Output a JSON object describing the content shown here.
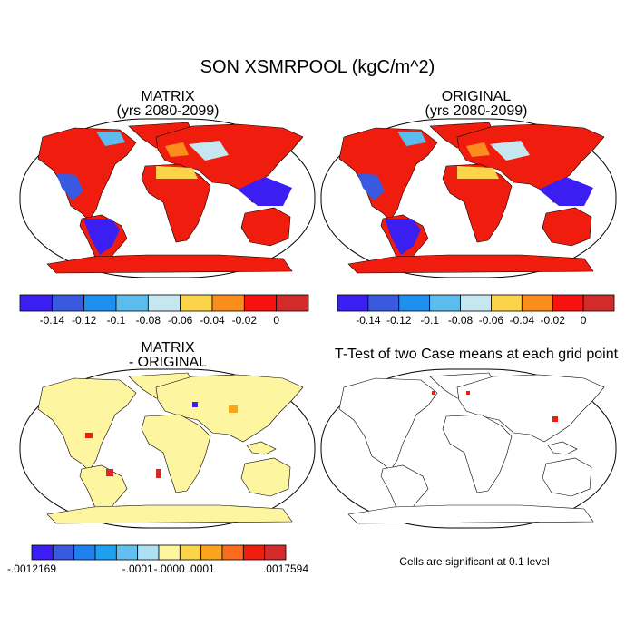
{
  "title": "SON XSMRPOOL (kgC/m^2)",
  "panels": [
    {
      "title": "MATRIX",
      "subtitle": "(yrs 2080-2099)"
    },
    {
      "title": "ORIGINAL",
      "subtitle": "(yrs 2080-2099)"
    },
    {
      "title": "MATRIX",
      "subtitle": "- ORIGINAL"
    },
    {
      "title": "T-Test of two Case means at each grid point",
      "note": "Cells are significant at 0.1 level"
    }
  ],
  "colorbars": [
    {
      "colors": [
        "#3a1ef2",
        "#3859e0",
        "#1e90f0",
        "#5bbcee",
        "#c6e6f0",
        "#fbd44a",
        "#fb8d1c",
        "#f7110f",
        "#d32b2b"
      ],
      "labels": [
        "-0.14",
        "-0.12",
        "-0.1",
        "-0.08",
        "-0.06",
        "-0.04",
        "-0.02",
        "0"
      ]
    },
    {
      "colors": [
        "#3a1ef2",
        "#3859e0",
        "#1e90f0",
        "#5bbcee",
        "#c6e6f0",
        "#fbd44a",
        "#fb8d1c",
        "#f7110f",
        "#d32b2b"
      ],
      "labels": [
        "-0.14",
        "-0.12",
        "-0.1",
        "-0.08",
        "-0.06",
        "-0.04",
        "-0.02",
        "0"
      ]
    },
    {
      "colors": [
        "#3a1ef2",
        "#3859e0",
        "#2080f0",
        "#1ea0f0",
        "#62c0f0",
        "#ade0f5",
        "#fdf5a0",
        "#fbd44a",
        "#fba41c",
        "#fb6d1c",
        "#f01d0f",
        "#d32b2b"
      ],
      "labels": [
        "-.0012169",
        "-.0001",
        "-.0000",
        ".0001",
        ".0017594"
      ]
    }
  ]
}
